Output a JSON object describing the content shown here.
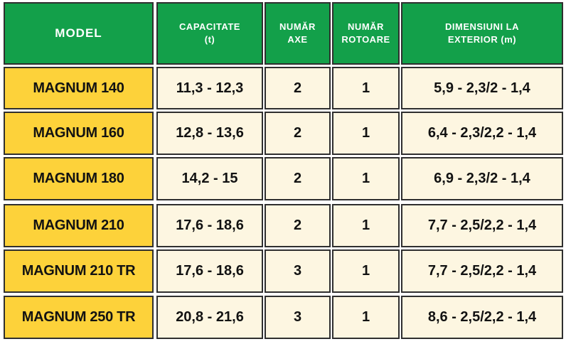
{
  "header": {
    "model": "MODEL",
    "capacitate_line1": "CAPACITATE",
    "capacitate_line2": "(t)",
    "axe_line1": "NUMĂR",
    "axe_line2": "AXE",
    "rotoare_line1": "NUMĂR",
    "rotoare_line2": "ROTOARE",
    "dimensiuni_line1": "DIMENSIUNI LA",
    "dimensiuni_line2": "EXTERIOR (m)"
  },
  "rows": [
    {
      "model": "MAGNUM 140",
      "capacitate": "11,3 - 12,3",
      "axe": "2",
      "rotoare": "1",
      "dimensiuni": "5,9 - 2,3/2 - 1,4"
    },
    {
      "model": "MAGNUM 160",
      "capacitate": "12,8 - 13,6",
      "axe": "2",
      "rotoare": "1",
      "dimensiuni": "6,4 - 2,3/2,2 - 1,4"
    },
    {
      "model": "MAGNUM 180",
      "capacitate": "14,2 - 15",
      "axe": "2",
      "rotoare": "1",
      "dimensiuni": "6,9 - 2,3/2 - 1,4"
    },
    {
      "model": "MAGNUM 210",
      "capacitate": "17,6 - 18,6",
      "axe": "2",
      "rotoare": "1",
      "dimensiuni": "7,7 - 2,5/2,2 - 1,4"
    },
    {
      "model": "MAGNUM 210 TR",
      "capacitate": "17,6 - 18,6",
      "axe": "3",
      "rotoare": "1",
      "dimensiuni": "7,7 - 2,5/2,2 - 1,4"
    },
    {
      "model": "MAGNUM 250 TR",
      "capacitate": "20,8 - 21,6",
      "axe": "3",
      "rotoare": "1",
      "dimensiuni": "8,6 - 2,5/2,2 - 1,4"
    }
  ],
  "colors": {
    "header_bg": "#13a04a",
    "model_bg": "#fdd23a",
    "value_bg": "#fdf6e1",
    "border": "#2f2f2f"
  }
}
